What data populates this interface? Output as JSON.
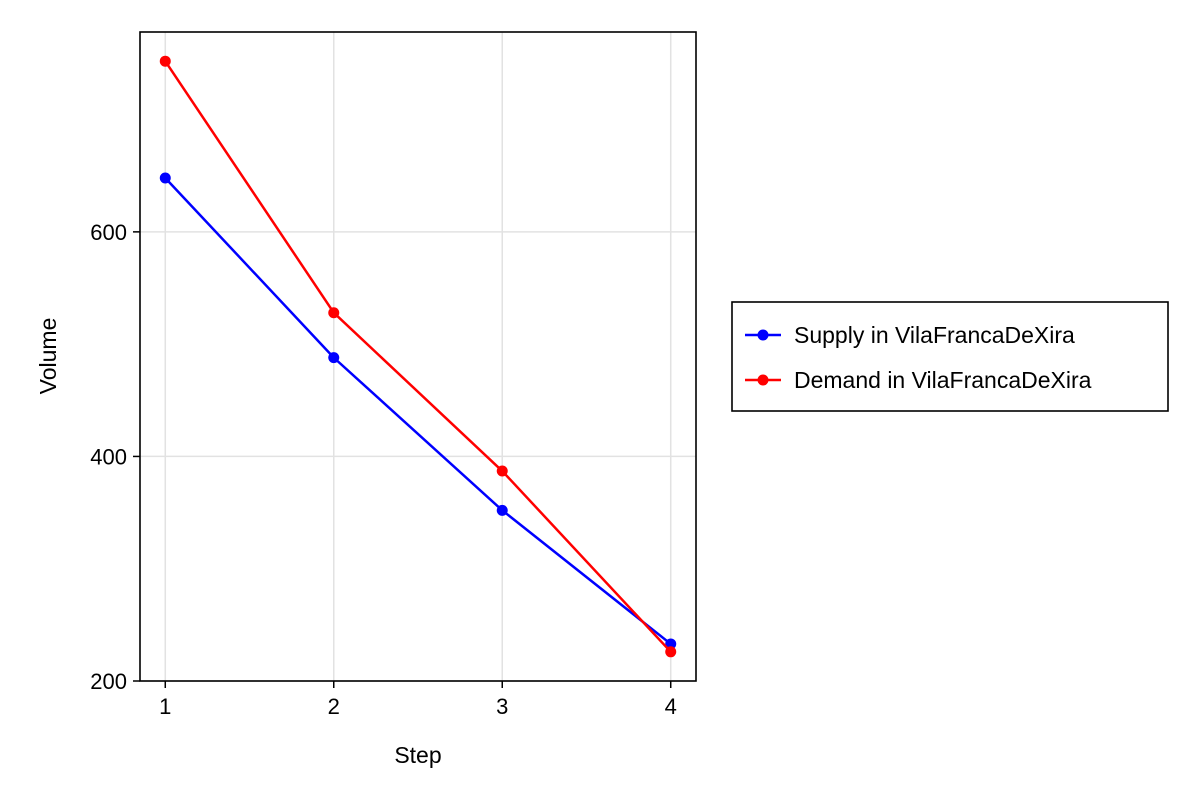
{
  "chart_data": {
    "type": "line",
    "xlabel": "Step",
    "ylabel": "Volume",
    "x": [
      1,
      2,
      3,
      4
    ],
    "xticks": [
      1,
      2,
      3,
      4
    ],
    "yticks": [
      200,
      400,
      600
    ],
    "xlim": [
      0.85,
      4.15
    ],
    "ylim": [
      200,
      778
    ],
    "grid": true,
    "legend_position": "right",
    "series": [
      {
        "name": "Supply in VilaFrancaDeXira",
        "color": "#0000ff",
        "values": [
          648,
          488,
          352,
          233
        ]
      },
      {
        "name": "Demand in VilaFrancaDeXira",
        "color": "#ff0000",
        "values": [
          752,
          528,
          387,
          226
        ]
      }
    ]
  }
}
